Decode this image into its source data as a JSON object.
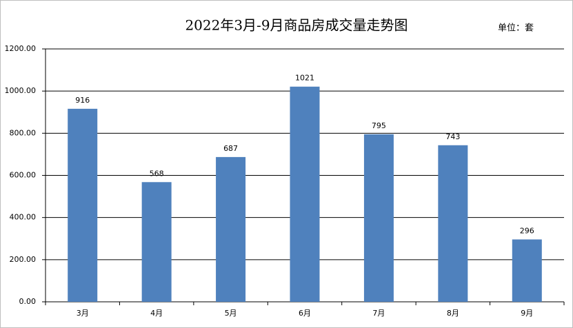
{
  "chart_data": {
    "type": "bar",
    "title": "2022年3月-9月商品房成交量走势图",
    "unit_label": "单位：套",
    "categories": [
      "3月",
      "4月",
      "5月",
      "6月",
      "7月",
      "8月",
      "9月"
    ],
    "values": [
      916,
      568,
      687,
      1021,
      795,
      743,
      296
    ],
    "color": "#4f81bd",
    "ylim": [
      0,
      1200
    ],
    "yticks": [
      {
        "value": 0,
        "label": "0.00"
      },
      {
        "value": 200,
        "label": "200.00"
      },
      {
        "value": 400,
        "label": "400.00"
      },
      {
        "value": 600,
        "label": "600.00"
      },
      {
        "value": 800,
        "label": "800.00"
      },
      {
        "value": 1000,
        "label": "1000.00"
      },
      {
        "value": 1200,
        "label": "1200.00"
      }
    ],
    "grid": true
  }
}
